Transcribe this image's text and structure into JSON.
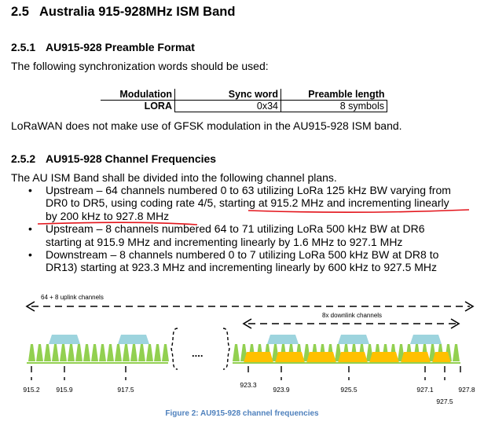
{
  "section": {
    "number": "2.5",
    "title": "Australia 915-928MHz ISM Band"
  },
  "preamble": {
    "number": "2.5.1",
    "title": "AU915-928 Preamble Format",
    "intro": "The following synchronization words should be used:",
    "table": {
      "headers": [
        "Modulation",
        "Sync word",
        "Preamble length"
      ],
      "row": [
        "LORA",
        "0x34",
        "8 symbols"
      ]
    },
    "note": "LoRaWAN does not make use of GFSK modulation in the AU915-928 ISM band."
  },
  "channels": {
    "number": "2.5.2",
    "title": "AU915-928 Channel Frequencies",
    "intro": "The AU ISM Band shall be divided into the following channel plans.",
    "bullet": "•",
    "items": [
      {
        "line1": "Upstream – 64 channels numbered 0 to 63 utilizing LoRa 125 kHz BW varying from",
        "line2a": "DR0 to DR5, using coding rate 4/5, ",
        "line2b": "starting at 915.2 MHz and incrementing linearly",
        "line3": "by 200 kHz to 927.8 MHz"
      },
      {
        "line1": "Upstream – 8 channels numbered 64 to 71 utilizing LoRa 500 kHz BW at DR6",
        "line2": "starting at 915.9 MHz and incrementing linearly by 1.6 MHz to 927.1 MHz"
      },
      {
        "line1": "Downstream – 8 channels numbered 0 to 7 utilizing LoRa 500 kHz BW at DR8 to",
        "line2": "DR13) starting at 923.3 MHz and incrementing linearly by 600 kHz to 927.5 MHz"
      }
    ]
  },
  "figure": {
    "uplink_label": "64 + 8  uplink channels",
    "downlink_label": "8x downlink channels",
    "ellipsis": "....",
    "freq_labels": [
      "915.2",
      "915.9",
      "917.5",
      "923.3",
      "923.9",
      "925.5",
      "927.1",
      "927.8",
      "927.5"
    ],
    "caption": "Figure 2: AU915-928 channel frequencies",
    "colors": {
      "uplink_125k": "#92d050",
      "uplink_500k": "#9dd4de",
      "downlink": "#ffc000",
      "annotation": "#e3141b",
      "caption": "#4f81bd"
    }
  }
}
